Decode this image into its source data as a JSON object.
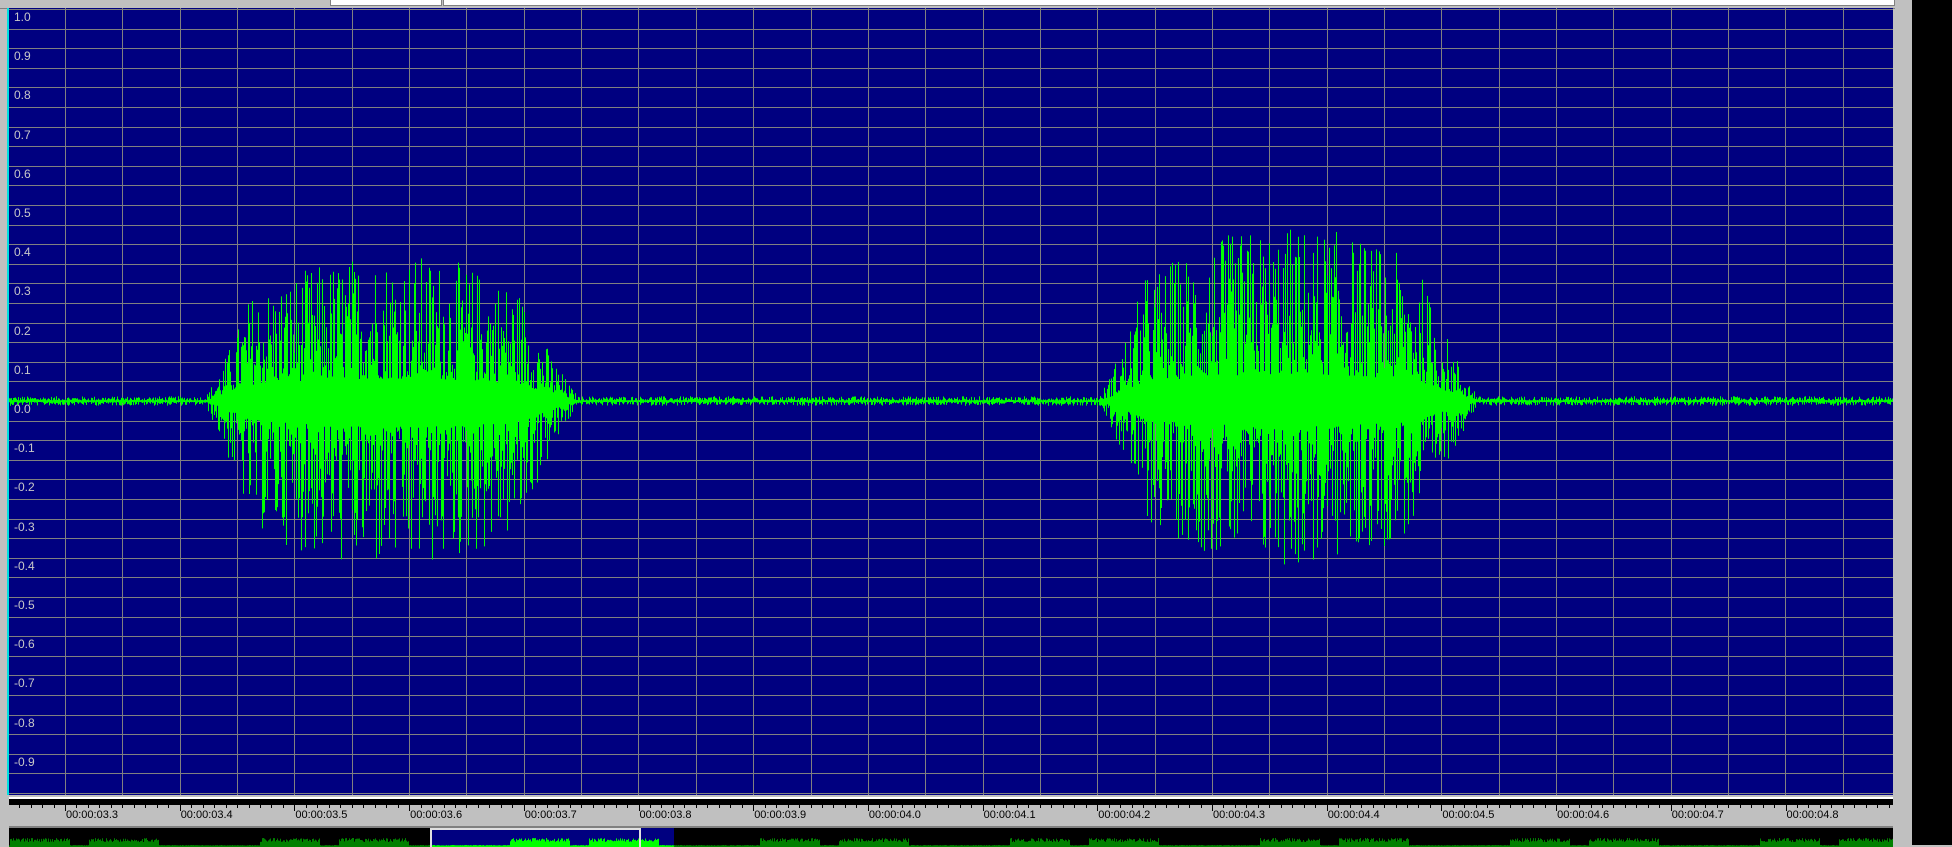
{
  "colors": {
    "background": "#000080",
    "grid": "#808080",
    "waveform": "#00ff00",
    "overview_waveform": "#008000",
    "label": "#c8c8c8"
  },
  "chart_data": {
    "type": "line",
    "title": "",
    "xlabel": "",
    "ylabel": "",
    "xlim": [
      3.251,
      4.894
    ],
    "ylim": [
      -1.0,
      1.0
    ],
    "grid": true,
    "y_ticks": [
      "1.0",
      "0.9",
      "0.8",
      "0.7",
      "0.6",
      "0.5",
      "0.4",
      "0.3",
      "0.2",
      "0.1",
      "0.0",
      "-0.1",
      "-0.2",
      "-0.3",
      "-0.4",
      "-0.5",
      "-0.6",
      "-0.7",
      "-0.8",
      "-0.9"
    ],
    "x_ticks": [
      "00:00:03.3",
      "00:00:03.4",
      "00:00:03.5",
      "00:00:03.6",
      "00:00:03.7",
      "00:00:03.8",
      "00:00:03.9",
      "00:00:04.0",
      "00:00:04.1",
      "00:00:04.2",
      "00:00:04.3",
      "00:00:04.4",
      "00:00:04.5",
      "00:00:04.6",
      "00:00:04.7",
      "00:00:04.8"
    ],
    "x_tick_values": [
      3.3,
      3.4,
      3.5,
      3.6,
      3.7,
      3.8,
      3.9,
      4.0,
      4.1,
      4.2,
      4.3,
      4.4,
      4.5,
      4.6,
      4.7,
      4.8
    ],
    "noise_amplitude": 0.012,
    "bursts": [
      {
        "start": 3.42,
        "end": 3.75,
        "peak_pos": 0.38,
        "peak_neg": -0.44
      },
      {
        "start": 4.2,
        "end": 4.535,
        "peak_pos": 0.45,
        "peak_neg": -0.43
      }
    ]
  },
  "overview": {
    "selection_start": 3.6,
    "selection_end": 3.75
  }
}
